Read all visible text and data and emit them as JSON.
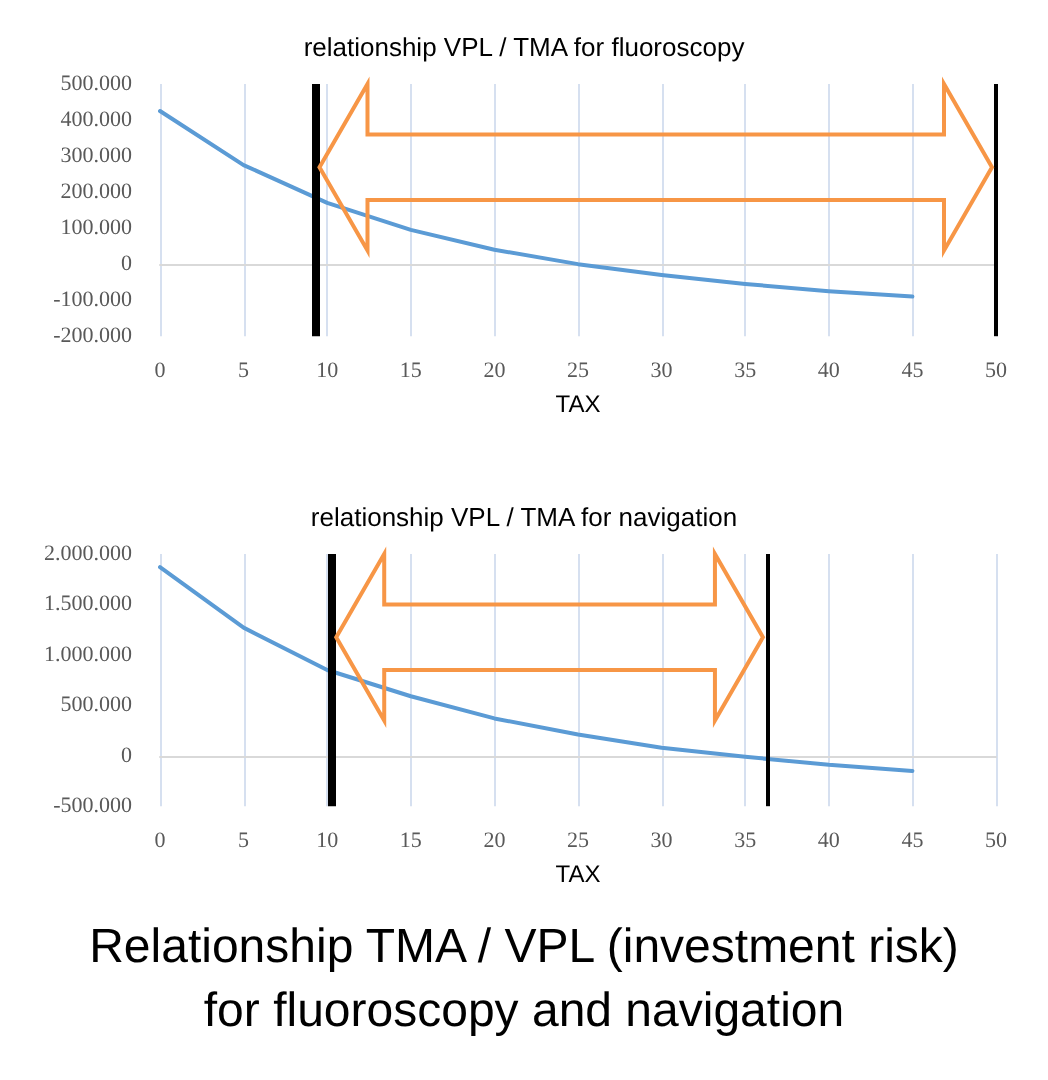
{
  "chart_data": [
    {
      "type": "line",
      "title": "relationship VPL / TMA for fluoroscopy",
      "xlabel": "TAX",
      "x": [
        0,
        5,
        10,
        15,
        20,
        25,
        30,
        35,
        40,
        45
      ],
      "series": [
        {
          "color": "#5b9bd5",
          "values": [
            425000,
            275000,
            170000,
            95000,
            40000,
            0,
            -30000,
            -55000,
            -75000,
            -90000
          ]
        }
      ],
      "xlim": [
        0,
        50
      ],
      "xticks": [
        0,
        5,
        10,
        15,
        20,
        25,
        30,
        35,
        40,
        45,
        50
      ],
      "ylim": [
        -200000,
        500000
      ],
      "yticks": [
        {
          "value": -200000,
          "label": "-200.000"
        },
        {
          "value": -100000,
          "label": "-100.000"
        },
        {
          "value": 0,
          "label": "0"
        },
        {
          "value": 100000,
          "label": "100.000"
        },
        {
          "value": 200000,
          "label": "200.000"
        },
        {
          "value": 300000,
          "label": "300.000"
        },
        {
          "value": 400000,
          "label": "400.000"
        },
        {
          "value": 500000,
          "label": "500.000"
        }
      ],
      "ref_lines": [
        {
          "axis": "x",
          "value": 9.3,
          "color": "#000000"
        },
        {
          "axis": "x",
          "value": 50,
          "color": "#000000"
        }
      ],
      "grid": "x",
      "marker": "none",
      "line_style": "solid"
    },
    {
      "type": "line",
      "title": "relationship VPL / TMA for navigation",
      "xlabel": "TAX",
      "x": [
        0,
        5,
        10,
        15,
        20,
        25,
        30,
        35,
        40,
        45
      ],
      "series": [
        {
          "color": "#5b9bd5",
          "values": [
            1870000,
            1270000,
            850000,
            590000,
            370000,
            210000,
            80000,
            -10000,
            -90000,
            -150000
          ]
        }
      ],
      "xlim": [
        0,
        50
      ],
      "xticks": [
        0,
        5,
        10,
        15,
        20,
        25,
        30,
        35,
        40,
        45,
        50
      ],
      "ylim": [
        -500000,
        2000000
      ],
      "yticks": [
        {
          "value": -500000,
          "label": "-500.000"
        },
        {
          "value": 0,
          "label": "0"
        },
        {
          "value": 500000,
          "label": "500.000"
        },
        {
          "value": 1000000,
          "label": "1.000.000"
        },
        {
          "value": 1500000,
          "label": "1.500.000"
        },
        {
          "value": 2000000,
          "label": "2.000.000"
        }
      ],
      "ref_lines": [
        {
          "axis": "x",
          "value": 10.3,
          "color": "#000000"
        },
        {
          "axis": "x",
          "value": 36.3,
          "color": "#000000"
        }
      ],
      "grid": "x",
      "marker": "none",
      "line_style": "solid",
      "annotations": [
        "Relationship TMA / VPL (investment risk) for fluoroscopy and navigation"
      ]
    }
  ]
}
